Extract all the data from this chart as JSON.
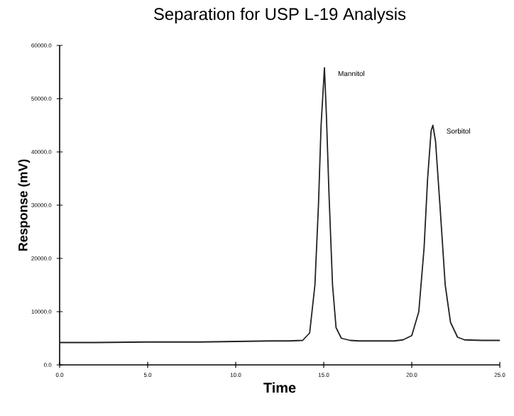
{
  "chart_data": {
    "type": "line",
    "title": "Separation for USP L-19 Analysis",
    "xlabel": "Time",
    "ylabel": "Response (mV)",
    "x": [
      0,
      2,
      5,
      8,
      10,
      12,
      13,
      13.8,
      14.2,
      14.5,
      14.7,
      14.85,
      15.04,
      15.15,
      15.3,
      15.5,
      15.7,
      16,
      16.5,
      17,
      18,
      19,
      19.5,
      20,
      20.4,
      20.7,
      20.9,
      21.1,
      21.2,
      21.35,
      21.6,
      21.9,
      22.2,
      22.6,
      23,
      24,
      25
    ],
    "series": [
      {
        "color": "#222222",
        "values": [
          4200,
          4200,
          4300,
          4300,
          4400,
          4500,
          4500,
          4600,
          6000,
          15000,
          30000,
          45000,
          55800,
          47000,
          32000,
          15000,
          7000,
          5000,
          4600,
          4500,
          4500,
          4500,
          4700,
          5500,
          10000,
          22000,
          35000,
          44000,
          45000,
          42000,
          30000,
          15000,
          8000,
          5200,
          4700,
          4600,
          4600
        ]
      }
    ],
    "xlim": [
      0,
      25
    ],
    "ylim": [
      0,
      60000
    ],
    "xticks": [
      {
        "value": 0,
        "label": "0.0"
      },
      {
        "value": 5,
        "label": "5.0"
      },
      {
        "value": 10,
        "label": "10.0"
      },
      {
        "value": 15,
        "label": "15.0"
      },
      {
        "value": 20,
        "label": "20.0"
      },
      {
        "value": 25,
        "label": "25.0"
      }
    ],
    "yticks": [
      {
        "value": 0,
        "label": "0.0"
      },
      {
        "value": 10000,
        "label": "10000.0"
      },
      {
        "value": 20000,
        "label": "20000.0"
      },
      {
        "value": 30000,
        "label": "30000.0"
      },
      {
        "value": 40000,
        "label": "40000.0"
      },
      {
        "value": 50000,
        "label": "50000.0"
      },
      {
        "value": 60000,
        "label": "60000.0"
      }
    ],
    "annotations": [
      {
        "text": "Mannitol",
        "x": 15.04,
        "y": 55800
      },
      {
        "text": "Sorbitol",
        "x": 21.2,
        "y": 45000
      }
    ],
    "marker": "none",
    "line_style": "solid"
  }
}
